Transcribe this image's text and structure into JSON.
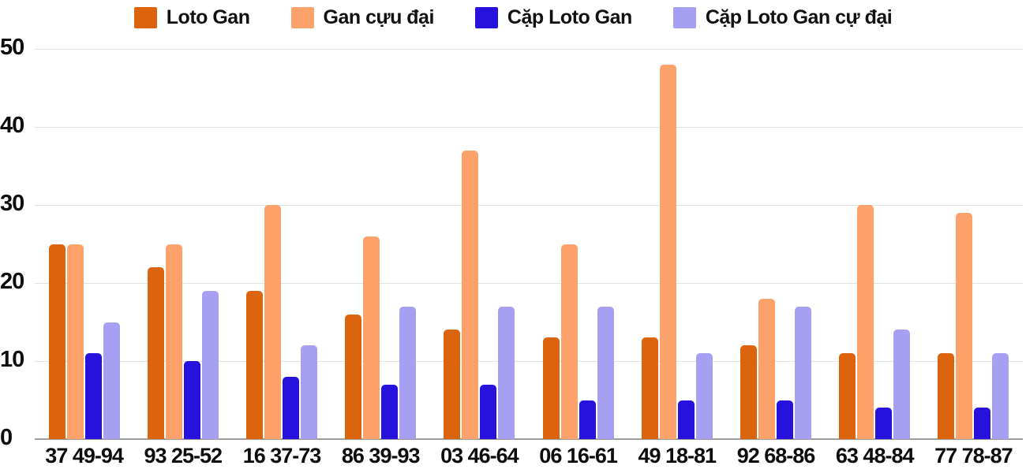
{
  "chart_data": {
    "type": "bar",
    "title": "",
    "xlabel": "",
    "ylabel": "",
    "categories": [
      "37 49-94",
      "93 25-52",
      "16 37-73",
      "86 39-93",
      "03 46-64",
      "06 16-61",
      "49 18-81",
      "92 68-86",
      "63 48-84",
      "77 78-87"
    ],
    "series": [
      {
        "name": "Loto Gan",
        "color": "#dd640f",
        "values": [
          25,
          22,
          19,
          16,
          14,
          13,
          13,
          12,
          11,
          11
        ]
      },
      {
        "name": "Gan cựu đại",
        "color": "#fda26b",
        "values": [
          25,
          25,
          30,
          26,
          37,
          25,
          48,
          18,
          30,
          29
        ]
      },
      {
        "name": "Cặp Loto Gan",
        "color": "#2612dc",
        "values": [
          11,
          10,
          8,
          7,
          7,
          5,
          5,
          5,
          4,
          4
        ]
      },
      {
        "name": "Cặp Loto Gan cự đại",
        "color": "#a79ff2",
        "values": [
          15,
          19,
          12,
          17,
          17,
          17,
          11,
          17,
          14,
          11
        ]
      }
    ],
    "ylim": [
      0,
      50
    ],
    "yticks": [
      0,
      10,
      20,
      30,
      40,
      50
    ],
    "grid": true,
    "legend_position": "top",
    "colors": {
      "background": "#ffffff",
      "gridline": "#e3e3e3",
      "axis_line": "#9e9e9e",
      "text": "#0d0d0d"
    }
  }
}
